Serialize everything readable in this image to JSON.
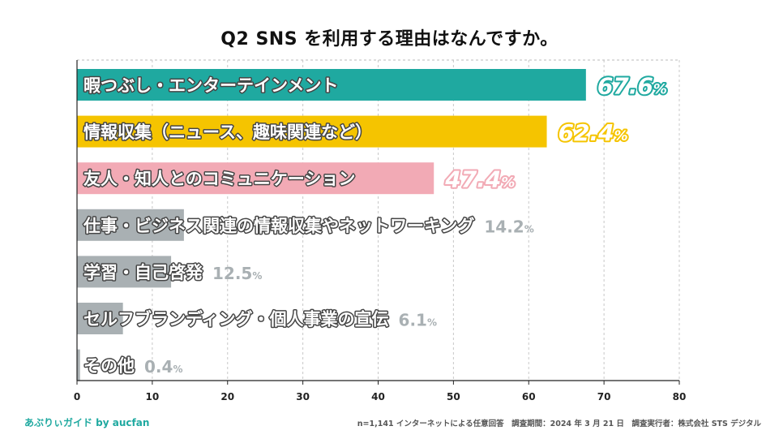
{
  "chart_data": {
    "type": "bar",
    "orientation": "horizontal",
    "title": "Q2 SNS を利用する理由はなんですか。",
    "categories": [
      "暇つぶし・エンターテインメント",
      "情報収集（ニュース、趣味関連など）",
      "友人・知人とのコミュニケーション",
      "仕事・ビジネス関連の情報収集やネットワーキング",
      "学習・自己啓発",
      "セルフブランディング・個人事業の宣伝",
      "その他"
    ],
    "values": [
      67.6,
      62.4,
      47.4,
      14.2,
      12.5,
      6.1,
      0.4
    ],
    "value_labels": [
      "67.6",
      "62.4",
      "47.4",
      "14.2",
      "12.5",
      "6.1",
      "0.4"
    ],
    "value_suffix": "%",
    "bar_colors": [
      "#1fa9a0",
      "#f5c400",
      "#f2aab5",
      "#a9b0b3",
      "#a9b0b3",
      "#a9b0b3",
      "#a9b0b3"
    ],
    "xlim": [
      0,
      80
    ],
    "xticks": [
      0,
      10,
      20,
      30,
      40,
      50,
      60,
      70,
      80
    ],
    "grid": true
  },
  "footer": {
    "brand": "あぶりぃガイド by aucfan",
    "note": "n=1,141 インターネットによる任意回答　調査期間：2024 年 3 月 21 日　調査実行者：株式会社 STS デジタル"
  }
}
